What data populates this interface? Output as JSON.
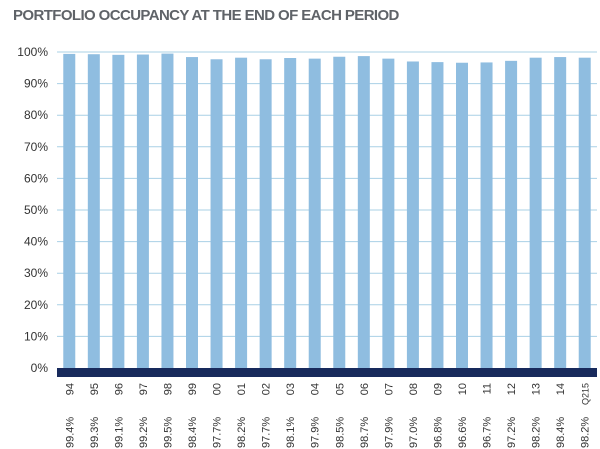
{
  "chart_data": {
    "type": "bar",
    "title": "PORTFOLIO OCCUPANCY AT THE END OF EACH PERIOD",
    "categories": [
      "94",
      "95",
      "96",
      "97",
      "98",
      "99",
      "00",
      "01",
      "02",
      "03",
      "04",
      "05",
      "06",
      "07",
      "08",
      "09",
      "10",
      "11",
      "12",
      "13",
      "14",
      "Q215"
    ],
    "values": [
      99.4,
      99.3,
      99.1,
      99.2,
      99.5,
      98.4,
      97.7,
      98.2,
      97.7,
      98.1,
      97.9,
      98.5,
      98.7,
      97.9,
      97.0,
      96.8,
      96.6,
      96.7,
      97.2,
      98.2,
      98.4,
      98.2
    ],
    "value_labels": [
      "99.4%",
      "99.3%",
      "99.1%",
      "99.2%",
      "99.5%",
      "98.4%",
      "97.7%",
      "98.2%",
      "97.7%",
      "98.1%",
      "97.9%",
      "98.5%",
      "98.7%",
      "97.9%",
      "97.0%",
      "96.8%",
      "96.6%",
      "96.7%",
      "97.2%",
      "98.2%",
      "98.4%",
      "98.2%"
    ],
    "ylim": [
      0,
      100
    ],
    "yticks": [
      "0%",
      "10%",
      "20%",
      "30%",
      "40%",
      "50%",
      "60%",
      "70%",
      "80%",
      "90%",
      "100%"
    ],
    "xlabel": "",
    "ylabel": "",
    "grid": true,
    "colors": {
      "bar": "#8fbde0",
      "baseline": "#182a5c",
      "grid": "#a9d0e6",
      "title": "#5f6368"
    }
  }
}
